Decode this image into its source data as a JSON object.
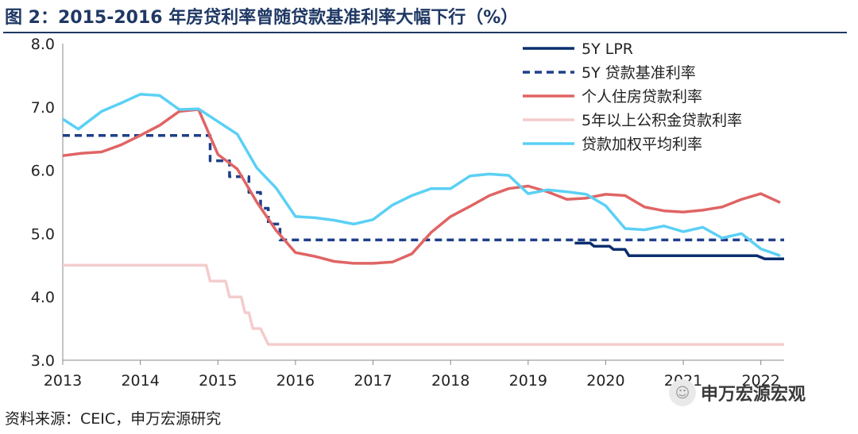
{
  "title": "图 2：2015-2016 年房贷利率曾随贷款基准利率大幅下行（%）",
  "source": "资料来源：CEIC，申万宏源研究",
  "watermark": {
    "text": "申万宏源宏观",
    "icon": "wechat-icon"
  },
  "chart_data": {
    "type": "line",
    "ylim": [
      3.0,
      8.0
    ],
    "yticks": [
      "3.0",
      "4.0",
      "5.0",
      "6.0",
      "7.0",
      "8.0"
    ],
    "xlim": [
      2013.0,
      2022.3
    ],
    "xticks": [
      "2013",
      "2014",
      "2015",
      "2016",
      "2017",
      "2018",
      "2019",
      "2020",
      "2021",
      "2022"
    ],
    "legend_position": "top-right",
    "series": [
      {
        "name": "5Y LPR",
        "color": "#0b2f6e",
        "style": "solid",
        "points": [
          [
            2019.6,
            4.85
          ],
          [
            2019.8,
            4.85
          ],
          [
            2019.85,
            4.8
          ],
          [
            2020.05,
            4.8
          ],
          [
            2020.1,
            4.75
          ],
          [
            2020.25,
            4.75
          ],
          [
            2020.3,
            4.65
          ],
          [
            2021.95,
            4.65
          ],
          [
            2022.05,
            4.6
          ],
          [
            2022.3,
            4.6
          ]
        ]
      },
      {
        "name": "5Y 贷款基准利率",
        "color": "#1f3f8a",
        "style": "dashed",
        "points": [
          [
            2013.0,
            6.55
          ],
          [
            2014.9,
            6.55
          ],
          [
            2014.9,
            6.15
          ],
          [
            2015.15,
            6.15
          ],
          [
            2015.15,
            5.9
          ],
          [
            2015.4,
            5.9
          ],
          [
            2015.4,
            5.65
          ],
          [
            2015.55,
            5.65
          ],
          [
            2015.55,
            5.4
          ],
          [
            2015.65,
            5.4
          ],
          [
            2015.65,
            5.15
          ],
          [
            2015.8,
            5.15
          ],
          [
            2015.8,
            4.9
          ],
          [
            2022.3,
            4.9
          ]
        ]
      },
      {
        "name": "个人住房贷款利率",
        "color": "#e06464",
        "style": "solid",
        "points": [
          [
            2013.0,
            6.23
          ],
          [
            2013.25,
            6.27
          ],
          [
            2013.5,
            6.29
          ],
          [
            2013.75,
            6.4
          ],
          [
            2014.0,
            6.55
          ],
          [
            2014.25,
            6.71
          ],
          [
            2014.5,
            6.93
          ],
          [
            2014.75,
            6.96
          ],
          [
            2015.0,
            6.25
          ],
          [
            2015.25,
            6.02
          ],
          [
            2015.5,
            5.5
          ],
          [
            2015.75,
            5.05
          ],
          [
            2016.0,
            4.7
          ],
          [
            2016.25,
            4.64
          ],
          [
            2016.5,
            4.56
          ],
          [
            2016.75,
            4.53
          ],
          [
            2017.0,
            4.53
          ],
          [
            2017.25,
            4.55
          ],
          [
            2017.5,
            4.68
          ],
          [
            2017.75,
            5.02
          ],
          [
            2018.0,
            5.27
          ],
          [
            2018.25,
            5.43
          ],
          [
            2018.5,
            5.6
          ],
          [
            2018.75,
            5.71
          ],
          [
            2019.0,
            5.75
          ],
          [
            2019.25,
            5.66
          ],
          [
            2019.5,
            5.54
          ],
          [
            2019.75,
            5.56
          ],
          [
            2020.0,
            5.62
          ],
          [
            2020.25,
            5.6
          ],
          [
            2020.5,
            5.42
          ],
          [
            2020.75,
            5.36
          ],
          [
            2021.0,
            5.34
          ],
          [
            2021.25,
            5.37
          ],
          [
            2021.5,
            5.42
          ],
          [
            2021.75,
            5.54
          ],
          [
            2022.0,
            5.63
          ],
          [
            2022.25,
            5.49
          ]
        ]
      },
      {
        "name": "5年以上公积金贷款利率",
        "color": "#f4cccc",
        "style": "solid",
        "points": [
          [
            2013.0,
            4.5
          ],
          [
            2014.85,
            4.5
          ],
          [
            2014.9,
            4.25
          ],
          [
            2015.1,
            4.25
          ],
          [
            2015.15,
            4.0
          ],
          [
            2015.3,
            4.0
          ],
          [
            2015.35,
            3.75
          ],
          [
            2015.4,
            3.75
          ],
          [
            2015.45,
            3.5
          ],
          [
            2015.55,
            3.5
          ],
          [
            2015.65,
            3.25
          ],
          [
            2022.3,
            3.25
          ]
        ]
      },
      {
        "name": "贷款加权平均利率",
        "color": "#5bd0f5",
        "style": "solid",
        "points": [
          [
            2013.0,
            6.81
          ],
          [
            2013.2,
            6.65
          ],
          [
            2013.5,
            6.93
          ],
          [
            2013.75,
            7.06
          ],
          [
            2014.0,
            7.2
          ],
          [
            2014.25,
            7.18
          ],
          [
            2014.5,
            6.96
          ],
          [
            2014.75,
            6.97
          ],
          [
            2015.0,
            6.77
          ],
          [
            2015.25,
            6.57
          ],
          [
            2015.5,
            6.04
          ],
          [
            2015.75,
            5.72
          ],
          [
            2016.0,
            5.27
          ],
          [
            2016.25,
            5.25
          ],
          [
            2016.5,
            5.21
          ],
          [
            2016.75,
            5.15
          ],
          [
            2017.0,
            5.22
          ],
          [
            2017.25,
            5.45
          ],
          [
            2017.5,
            5.6
          ],
          [
            2017.75,
            5.71
          ],
          [
            2018.0,
            5.71
          ],
          [
            2018.25,
            5.91
          ],
          [
            2018.5,
            5.94
          ],
          [
            2018.75,
            5.92
          ],
          [
            2019.0,
            5.63
          ],
          [
            2019.25,
            5.69
          ],
          [
            2019.5,
            5.66
          ],
          [
            2019.75,
            5.62
          ],
          [
            2020.0,
            5.44
          ],
          [
            2020.25,
            5.08
          ],
          [
            2020.5,
            5.06
          ],
          [
            2020.75,
            5.12
          ],
          [
            2021.0,
            5.03
          ],
          [
            2021.25,
            5.1
          ],
          [
            2021.5,
            4.93
          ],
          [
            2021.75,
            5.0
          ],
          [
            2022.0,
            4.76
          ],
          [
            2022.25,
            4.65
          ]
        ]
      }
    ]
  }
}
